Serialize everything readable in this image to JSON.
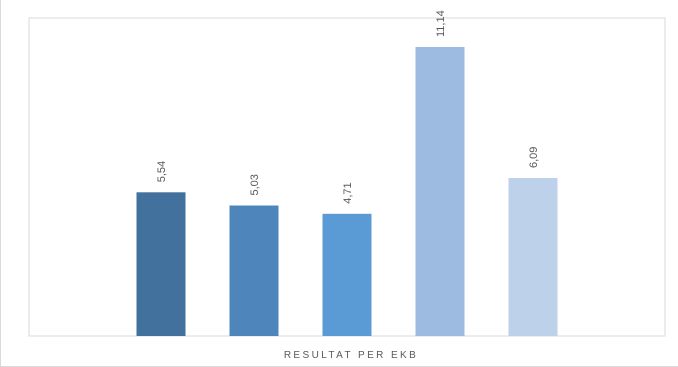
{
  "chart_data": {
    "type": "bar",
    "categories": [
      "",
      "",
      "",
      "",
      ""
    ],
    "values": [
      5.54,
      5.03,
      4.71,
      11.14,
      6.09
    ],
    "data_labels": [
      "5,54",
      "5,03",
      "4,71",
      "11,14",
      "6,09"
    ],
    "colors": [
      "#41719c",
      "#4e86bc",
      "#5b9bd5",
      "#9dbbe1",
      "#bdd1ea"
    ],
    "xlabel": "RESULTAT PER EKB",
    "ylabel": "",
    "title": "",
    "ylim": [
      0,
      11.14
    ],
    "grid": false,
    "legend": "none"
  }
}
